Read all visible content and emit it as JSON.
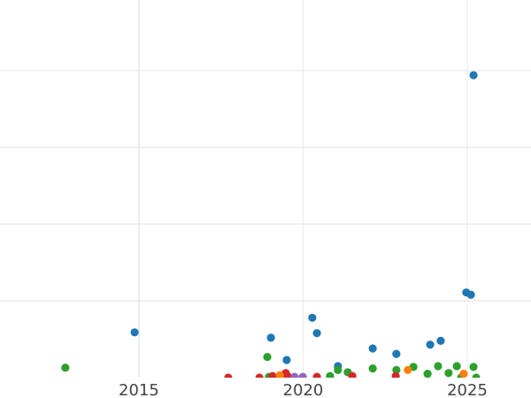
{
  "chart_data": {
    "type": "scatter",
    "title": "",
    "xlabel": "",
    "ylabel": "",
    "xlim": [
      2010.77,
      2026.94
    ],
    "ylim": [
      0,
      4.92
    ],
    "x_ticks": [
      2015,
      2020,
      2025
    ],
    "x_tick_labels": [
      "2015",
      "2020",
      "2025"
    ],
    "y_gridlines": [
      1,
      2,
      3,
      4
    ],
    "grid": true,
    "series": [
      {
        "color": "#1f77b4",
        "points": [
          [
            2014.87,
            0.59
          ],
          [
            2019.02,
            0.52
          ],
          [
            2019.5,
            0.23
          ],
          [
            2020.28,
            0.78
          ],
          [
            2020.42,
            0.58
          ],
          [
            2021.06,
            0.15
          ],
          [
            2022.12,
            0.38
          ],
          [
            2022.84,
            0.31
          ],
          [
            2023.87,
            0.43
          ],
          [
            2024.19,
            0.48
          ],
          [
            2024.97,
            1.11
          ],
          [
            2025.11,
            1.08
          ],
          [
            2025.19,
            3.94
          ]
        ]
      },
      {
        "color": "#2ca02c",
        "points": [
          [
            2012.76,
            0.13
          ],
          [
            2018.91,
            0.27
          ],
          [
            2018.96,
            0.01
          ],
          [
            2020.82,
            0.02
          ],
          [
            2021.06,
            0.1
          ],
          [
            2021.36,
            0.07
          ],
          [
            2022.12,
            0.12
          ],
          [
            2022.84,
            0.1
          ],
          [
            2023.36,
            0.14
          ],
          [
            2023.79,
            0.05
          ],
          [
            2024.11,
            0.15
          ],
          [
            2024.43,
            0.06
          ],
          [
            2024.68,
            0.15
          ],
          [
            2024.81,
            0.0
          ],
          [
            2025.19,
            0.14
          ],
          [
            2025.27,
            0.0
          ]
        ]
      },
      {
        "color": "#d62728",
        "points": [
          [
            2017.72,
            0.0
          ],
          [
            2018.67,
            0.0
          ],
          [
            2019.07,
            0.02
          ],
          [
            2019.47,
            0.06
          ],
          [
            2019.53,
            0.02
          ],
          [
            2020.42,
            0.01
          ],
          [
            2021.5,
            0.02
          ],
          [
            2022.82,
            0.02
          ]
        ]
      },
      {
        "color": "#ff7f0e",
        "points": [
          [
            2019.29,
            0.03
          ],
          [
            2023.19,
            0.1
          ],
          [
            2024.89,
            0.05
          ]
        ]
      },
      {
        "color": "#9467bd",
        "points": [
          [
            2019.74,
            0.01
          ],
          [
            2019.99,
            0.01
          ]
        ]
      }
    ]
  }
}
